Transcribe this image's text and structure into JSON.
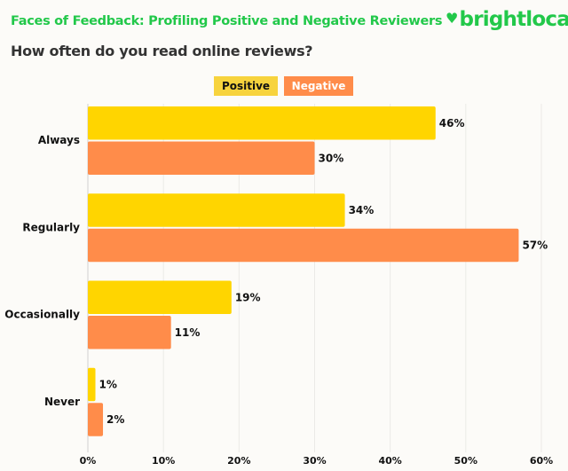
{
  "header": {
    "title": "Faces of Feedback: Profiling Positive and Negative Reviewers",
    "logo": "brightlocal"
  },
  "colors": {
    "positive": "#ffd500",
    "negative": "#ff8c4a",
    "brand": "#22c84a"
  },
  "chart_data": {
    "type": "bar",
    "orientation": "horizontal",
    "title": "How often do you read online reviews?",
    "categories": [
      "Always",
      "Regularly",
      "Occasionally",
      "Never"
    ],
    "series": [
      {
        "name": "Positive",
        "values": [
          46,
          34,
          19,
          1
        ]
      },
      {
        "name": "Negative",
        "values": [
          30,
          57,
          11,
          2
        ]
      }
    ],
    "xlim": [
      0,
      60
    ],
    "xticks": [
      "0%",
      "10%",
      "20%",
      "30%",
      "40%",
      "50%",
      "60%"
    ],
    "legend": "top-center",
    "grid": true
  }
}
